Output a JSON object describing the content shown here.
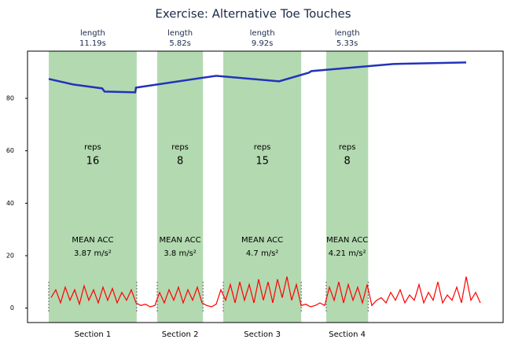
{
  "chart_data": {
    "type": "line",
    "title": "Exercise: Alternative Toe Touches",
    "xlim": [
      0,
      60.5
    ],
    "ylim": [
      -5.5,
      98
    ],
    "yticks": [
      0,
      20,
      40,
      60,
      80
    ],
    "grid": false,
    "shade_color": "#b3d9b0",
    "length_label": "length",
    "reps_label": "reps",
    "acc_label": "MEAN ACC",
    "sections": [
      {
        "name": "Section 1",
        "start": 2.7,
        "length": 11.19,
        "length_text": "11.19s",
        "reps": 16,
        "mean_acc": 3.87,
        "mean_acc_text": "3.87 m/s²"
      },
      {
        "name": "Section 2",
        "start": 16.5,
        "length": 5.82,
        "length_text": "5.82s",
        "reps": 8,
        "mean_acc": 3.8,
        "mean_acc_text": "3.8 m/s²"
      },
      {
        "name": "Section 3",
        "start": 24.9,
        "length": 9.92,
        "length_text": "9.92s",
        "reps": 15,
        "mean_acc": 4.7,
        "mean_acc_text": "4.7 m/s²"
      },
      {
        "name": "Section 4",
        "start": 38.0,
        "length": 5.33,
        "length_text": "5.33s",
        "reps": 8,
        "mean_acc": 4.21,
        "mean_acc_text": "4.21 m/s²"
      }
    ],
    "series": [
      {
        "color": "#2233bb",
        "x": [
          2.7,
          5.8,
          9.5,
          9.8,
          13.7,
          13.8,
          24,
          32,
          35.8,
          36.1,
          46.5,
          55.8
        ],
        "values": [
          87.4,
          85.3,
          83.8,
          82.6,
          82.3,
          84.1,
          88.6,
          86.5,
          89.8,
          90.4,
          93.1,
          93.7
        ]
      },
      {
        "color": "#ff0000",
        "x": [
          3,
          3.6,
          4.2,
          4.8,
          5.4,
          6,
          6.6,
          7.2,
          7.8,
          8.4,
          9,
          9.6,
          10.2,
          10.8,
          11.4,
          12,
          12.6,
          13.2,
          13.8,
          14.4,
          15,
          15.6,
          16.2,
          16.8,
          17.4,
          18,
          18.6,
          19.2,
          19.8,
          20.4,
          21,
          21.6,
          22.2,
          22.8,
          23.4,
          24,
          24.6,
          25.2,
          25.8,
          26.4,
          27,
          27.6,
          28.2,
          28.8,
          29.4,
          30,
          30.6,
          31.2,
          31.8,
          32.4,
          33,
          33.6,
          34.2,
          34.8,
          35.4,
          36,
          36.6,
          37.2,
          37.8,
          38.4,
          39,
          39.6,
          40.2,
          40.8,
          41.4,
          42,
          42.6,
          43.2,
          43.8,
          44.4,
          45,
          45.6,
          46.2,
          46.8,
          47.4,
          48,
          48.6,
          49.2,
          49.8,
          50.4,
          51,
          51.6,
          52.2,
          52.8,
          53.4,
          54,
          54.6,
          55.2,
          55.8,
          56.4,
          57,
          57.6
        ],
        "values": [
          4,
          7,
          2,
          8,
          3,
          7,
          1.5,
          8.5,
          3,
          7,
          2,
          8,
          3,
          7.5,
          2,
          6,
          3,
          7,
          2,
          1,
          1.5,
          0.5,
          1,
          6,
          2,
          7,
          3,
          8,
          2,
          7,
          3,
          8,
          2,
          1,
          0.5,
          1.5,
          7,
          3,
          9,
          2,
          10,
          3,
          9,
          2,
          11,
          3,
          10,
          2,
          11,
          4,
          12,
          3,
          9,
          1,
          1.5,
          0.5,
          1,
          2,
          1,
          8,
          3,
          10,
          2,
          9,
          3,
          8,
          2,
          9,
          1,
          3,
          4,
          2,
          6,
          3,
          7,
          2,
          5,
          3,
          9,
          2,
          6,
          3,
          10,
          2,
          5,
          3,
          8,
          2,
          12,
          3,
          6,
          2
        ]
      }
    ]
  }
}
